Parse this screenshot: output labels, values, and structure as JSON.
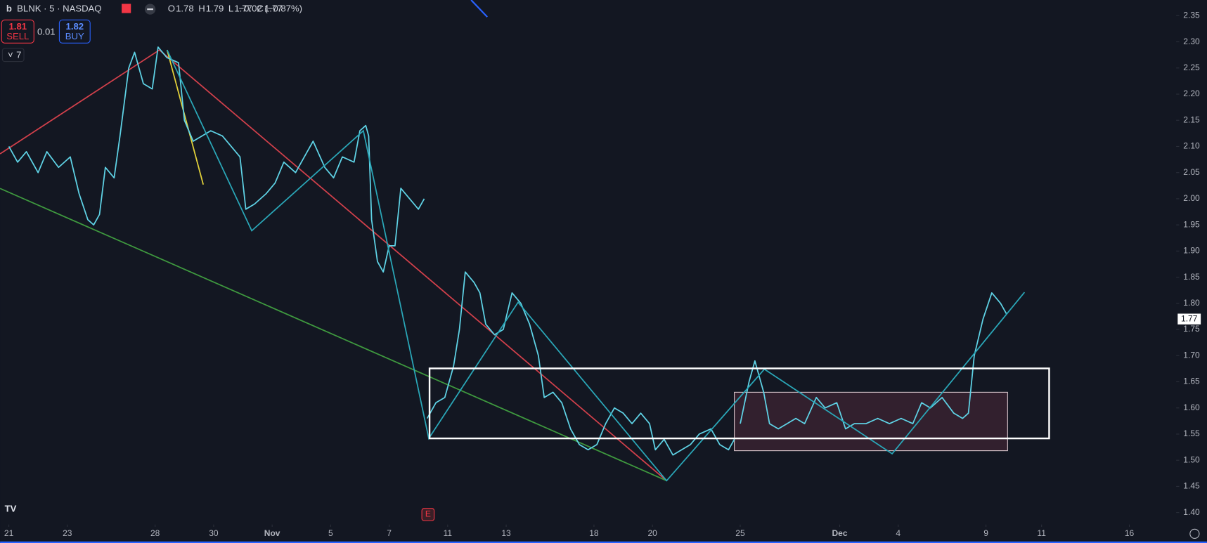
{
  "header": {
    "symbol": "BLNK · 5 · NASDAQ",
    "ohlc": [
      {
        "label": "O",
        "value": "1.78"
      },
      {
        "label": "H",
        "value": "1.79"
      },
      {
        "label": "L",
        "value": "1.77"
      },
      {
        "label": "C",
        "value": "1.77"
      }
    ],
    "change": "−0.02 (−0.87%)",
    "sell": {
      "price": "1.81",
      "label": "SELL"
    },
    "spread": "0.01",
    "buy": {
      "price": "1.82",
      "label": "BUY"
    },
    "indicators": "7"
  },
  "chart_data": {
    "type": "line",
    "color": "#5fd3e6",
    "last_price": 1.77,
    "earnings_marker": "E",
    "ylim": [
      1.38,
      2.38
    ],
    "xlim": [
      -0.3,
      39.9
    ],
    "yticks": [
      {
        "value": 1.4,
        "label": "1.40"
      },
      1.45,
      {
        "value": 1.5,
        "label": "1.50"
      },
      1.55,
      {
        "value": 1.6,
        "label": "1.60"
      },
      1.65,
      {
        "value": 1.7,
        "label": "1.70"
      },
      1.75,
      {
        "value": 1.8,
        "label": "1.80"
      },
      1.85,
      {
        "value": 1.9,
        "label": "1.90"
      },
      1.95,
      {
        "value": 2.0,
        "label": "2.00"
      },
      2.05,
      {
        "value": 2.1,
        "label": "2.10"
      },
      2.15,
      {
        "value": 2.2,
        "label": "2.20"
      },
      2.25,
      {
        "value": 2.3,
        "label": "2.30"
      },
      2.35
    ],
    "xticks": [
      {
        "value": 0,
        "label": "21"
      },
      {
        "value": 2,
        "label": "23"
      },
      {
        "value": 5,
        "label": "28"
      },
      {
        "value": 7,
        "label": "30"
      },
      {
        "value": 9,
        "label": "Nov"
      },
      {
        "value": 11,
        "label": "5"
      },
      {
        "value": 13,
        "label": "7"
      },
      {
        "value": 15,
        "label": "11"
      },
      {
        "value": 17,
        "label": "13"
      },
      {
        "value": 20,
        "label": "18"
      },
      {
        "value": 22,
        "label": "20"
      },
      {
        "value": 25,
        "label": "25"
      },
      {
        "value": 28.4,
        "label": "Dec"
      },
      {
        "value": 30.4,
        "label": "4"
      },
      {
        "value": 33.4,
        "label": "9"
      },
      {
        "value": 35.3,
        "label": "11"
      },
      {
        "value": 38.3,
        "label": "16"
      }
    ],
    "x": [
      0,
      0.3,
      0.6,
      1,
      1.3,
      1.7,
      2.1,
      2.4,
      2.7,
      2.9,
      3.1,
      3.3,
      3.6,
      3.8,
      4.1,
      4.3,
      4.6,
      4.9,
      5.1,
      5.4,
      5.8,
      6.0,
      6.3,
      6.6,
      6.9,
      7.3,
      7.6,
      7.9,
      8.1,
      8.4,
      8.8,
      9.1,
      9.4,
      9.8,
      10.1,
      10.4,
      10.8,
      11.1,
      11.4,
      11.8,
      12.0,
      12.2,
      12.3,
      12.4,
      12.6,
      12.8,
      13.0,
      13.2,
      13.4,
      13.7,
      14.0,
      14.2,
      14.25,
      14.3,
      14.6,
      14.9,
      15.2,
      15.4,
      15.6,
      15.9,
      16.1,
      16.3,
      16.6,
      16.9,
      17.2,
      17.5,
      17.8,
      18.1,
      18.3,
      18.6,
      18.9,
      19.2,
      19.5,
      19.8,
      20.1,
      20.4,
      20.7,
      21.0,
      21.3,
      21.6,
      21.9,
      22.1,
      22.4,
      22.7,
      23.0,
      23.3,
      23.6,
      24.0,
      24.3,
      24.6,
      24.8,
      24.9,
      25.0,
      25.3,
      25.5,
      25.8,
      26.0,
      26.3,
      26.6,
      26.9,
      27.2,
      27.6,
      27.9,
      28.3,
      28.6,
      28.9,
      29.3,
      29.7,
      30.1,
      30.5,
      30.9,
      31.2,
      31.5,
      31.9,
      32.3,
      32.6,
      32.8,
      33.0,
      33.3,
      33.6,
      33.9,
      34.1
    ],
    "values": [
      2.1,
      2.07,
      2.09,
      2.05,
      2.09,
      2.06,
      2.08,
      2.01,
      1.96,
      1.95,
      1.97,
      2.06,
      2.04,
      2.12,
      2.25,
      2.28,
      2.22,
      2.21,
      2.29,
      2.27,
      2.26,
      2.15,
      2.11,
      2.12,
      2.13,
      2.12,
      2.1,
      2.08,
      1.98,
      1.99,
      2.01,
      2.03,
      2.07,
      2.05,
      2.08,
      2.11,
      2.06,
      2.04,
      2.08,
      2.07,
      2.13,
      2.14,
      2.12,
      1.96,
      1.88,
      1.86,
      1.91,
      1.91,
      2.02,
      2.0,
      1.98,
      2.0,
      null,
      1.58,
      1.61,
      1.62,
      1.68,
      1.75,
      1.86,
      1.84,
      1.82,
      1.76,
      1.74,
      1.75,
      1.82,
      1.8,
      1.76,
      1.7,
      1.62,
      1.63,
      1.61,
      1.56,
      1.53,
      1.52,
      1.53,
      1.57,
      1.6,
      1.59,
      1.57,
      1.59,
      1.57,
      1.52,
      1.54,
      1.51,
      1.52,
      1.53,
      1.55,
      1.56,
      1.53,
      1.52,
      1.54,
      null,
      1.57,
      1.65,
      1.69,
      1.63,
      1.57,
      1.56,
      1.57,
      1.58,
      1.57,
      1.62,
      1.6,
      1.61,
      1.56,
      1.57,
      1.57,
      1.58,
      1.57,
      1.58,
      1.57,
      1.61,
      1.6,
      1.62,
      1.59,
      1.58,
      1.59,
      1.7,
      1.77,
      1.82,
      1.8,
      1.78
    ]
  }
}
